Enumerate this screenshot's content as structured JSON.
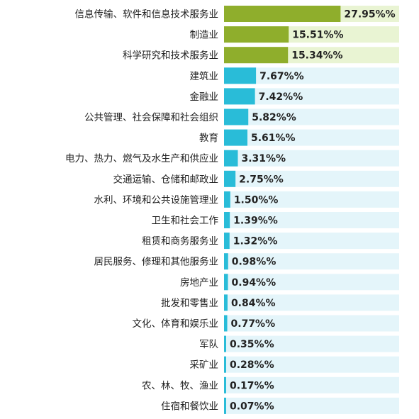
{
  "chart_data": {
    "type": "bar",
    "orientation": "horizontal",
    "title": "",
    "xlabel": "",
    "ylabel": "",
    "xlim": [
      0,
      42
    ],
    "grid": false,
    "categories": [
      "信息传输、软件和信息技术服务业",
      "制造业",
      "科学研究和技术服务业",
      "建筑业",
      "金融业",
      "公共管理、社会保障和社会组织",
      "教育",
      "电力、热力、燃气及水生产和供应业",
      "交通运输、仓储和邮政业",
      "水利、环境和公共设施管理业",
      "卫生和社会工作",
      "租赁和商务服务业",
      "居民服务、修理和其他服务业",
      "房地产业",
      "批发和零售业",
      "文化、体育和娱乐业",
      "军队",
      "采矿业",
      "农、林、牧、渔业",
      "住宿和餐饮业"
    ],
    "values": [
      27.95,
      15.51,
      15.34,
      7.67,
      7.42,
      5.82,
      5.61,
      3.31,
      2.75,
      1.5,
      1.39,
      1.32,
      0.98,
      0.94,
      0.84,
      0.77,
      0.35,
      0.28,
      0.17,
      0.07
    ],
    "value_labels": [
      "27.95%%",
      "15.51%%",
      "15.34%%",
      "7.67%%",
      "7.42%%",
      "5.82%%",
      "5.61%%",
      "3.31%%",
      "2.75%%",
      "1.50%%",
      "1.39%%",
      "1.32%%",
      "0.98%%",
      "0.94%%",
      "0.84%%",
      "0.77%%",
      "0.35%%",
      "0.28%%",
      "0.17%%",
      "0.07%%"
    ],
    "bar_colors": [
      "#8fae2c",
      "#8fae2c",
      "#8fae2c",
      "#29bcd8",
      "#29bcd8",
      "#29bcd8",
      "#29bcd8",
      "#29bcd8",
      "#29bcd8",
      "#29bcd8",
      "#29bcd8",
      "#29bcd8",
      "#29bcd8",
      "#29bcd8",
      "#29bcd8",
      "#29bcd8",
      "#29bcd8",
      "#29bcd8",
      "#29bcd8",
      "#29bcd8"
    ],
    "track_colors": [
      "#e9f4d3",
      "#e9f4d3",
      "#e9f4d3",
      "#e4f5fa",
      "#e4f5fa",
      "#e4f5fa",
      "#e4f5fa",
      "#e4f5fa",
      "#e4f5fa",
      "#e4f5fa",
      "#e4f5fa",
      "#e4f5fa",
      "#e4f5fa",
      "#e4f5fa",
      "#e4f5fa",
      "#e4f5fa",
      "#e4f5fa",
      "#e4f5fa",
      "#e4f5fa",
      "#e4f5fa"
    ]
  }
}
